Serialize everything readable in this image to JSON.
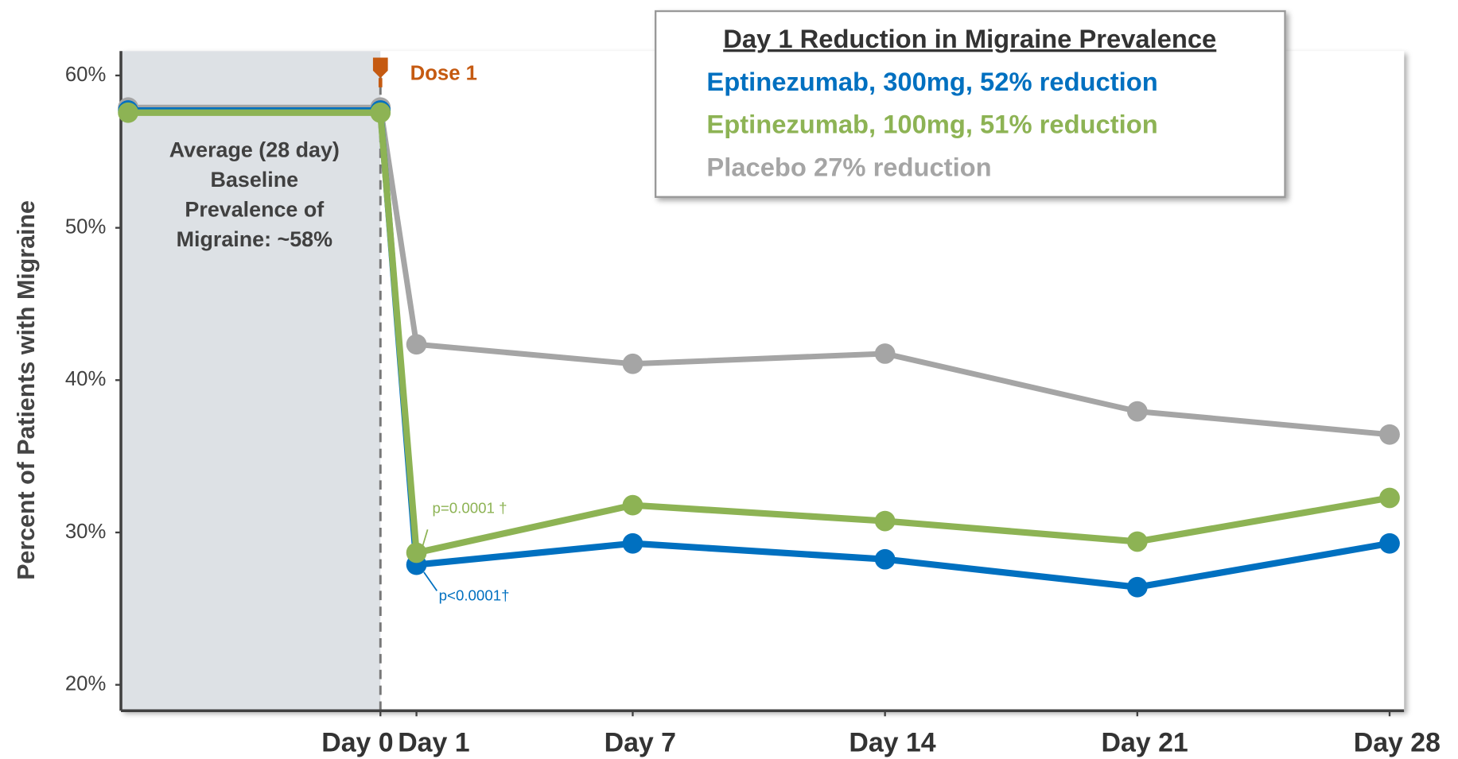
{
  "chart_data": {
    "type": "line",
    "y_label": "Percent of Patients with Migraine",
    "legend_title": "Day 1 Reduction in Migraine Prevalence",
    "baseline_note": [
      "Average (28 day)",
      "Baseline",
      "Prevalence of",
      "Migraine: ~58%"
    ],
    "dose_label": "Dose 1",
    "p_value_labels": [
      "p=0.0001 †",
      "p<0.0001†"
    ],
    "x": [
      -7,
      0,
      1,
      7,
      14,
      21,
      28
    ],
    "xlim": [
      -7.2,
      28.4
    ],
    "xticks": [
      {
        "value": 0,
        "label": "Day 0"
      },
      {
        "value": 1,
        "label": "Day 1"
      },
      {
        "value": 7,
        "label": "Day 7"
      },
      {
        "value": 14,
        "label": "Day 14"
      },
      {
        "value": 21,
        "label": "Day 21"
      },
      {
        "value": 28,
        "label": "Day 28"
      }
    ],
    "ylim": [
      18.3,
      61.6
    ],
    "yticks": [
      {
        "value": 20,
        "label": "20%"
      },
      {
        "value": 30,
        "label": "30%"
      },
      {
        "value": 40,
        "label": "40%"
      },
      {
        "value": 50,
        "label": "50%"
      },
      {
        "value": 60,
        "label": "60%"
      }
    ],
    "series": [
      {
        "name": "Placebo 27% reduction",
        "color": "#a5a5a5",
        "values": [
          57.9,
          57.9,
          42.35,
          41.07,
          41.74,
          37.95,
          36.43
        ]
      },
      {
        "name": "Eptinezumab, 300mg, 52% reduction",
        "color": "#0070c0",
        "values": [
          57.7,
          57.7,
          27.88,
          29.28,
          28.24,
          26.41,
          29.28
        ]
      },
      {
        "name": "Eptinezumab, 100mg, 51% reduction",
        "color": "#8db354",
        "values": [
          57.56,
          57.56,
          28.67,
          31.79,
          30.75,
          29.4,
          32.27
        ]
      }
    ]
  }
}
